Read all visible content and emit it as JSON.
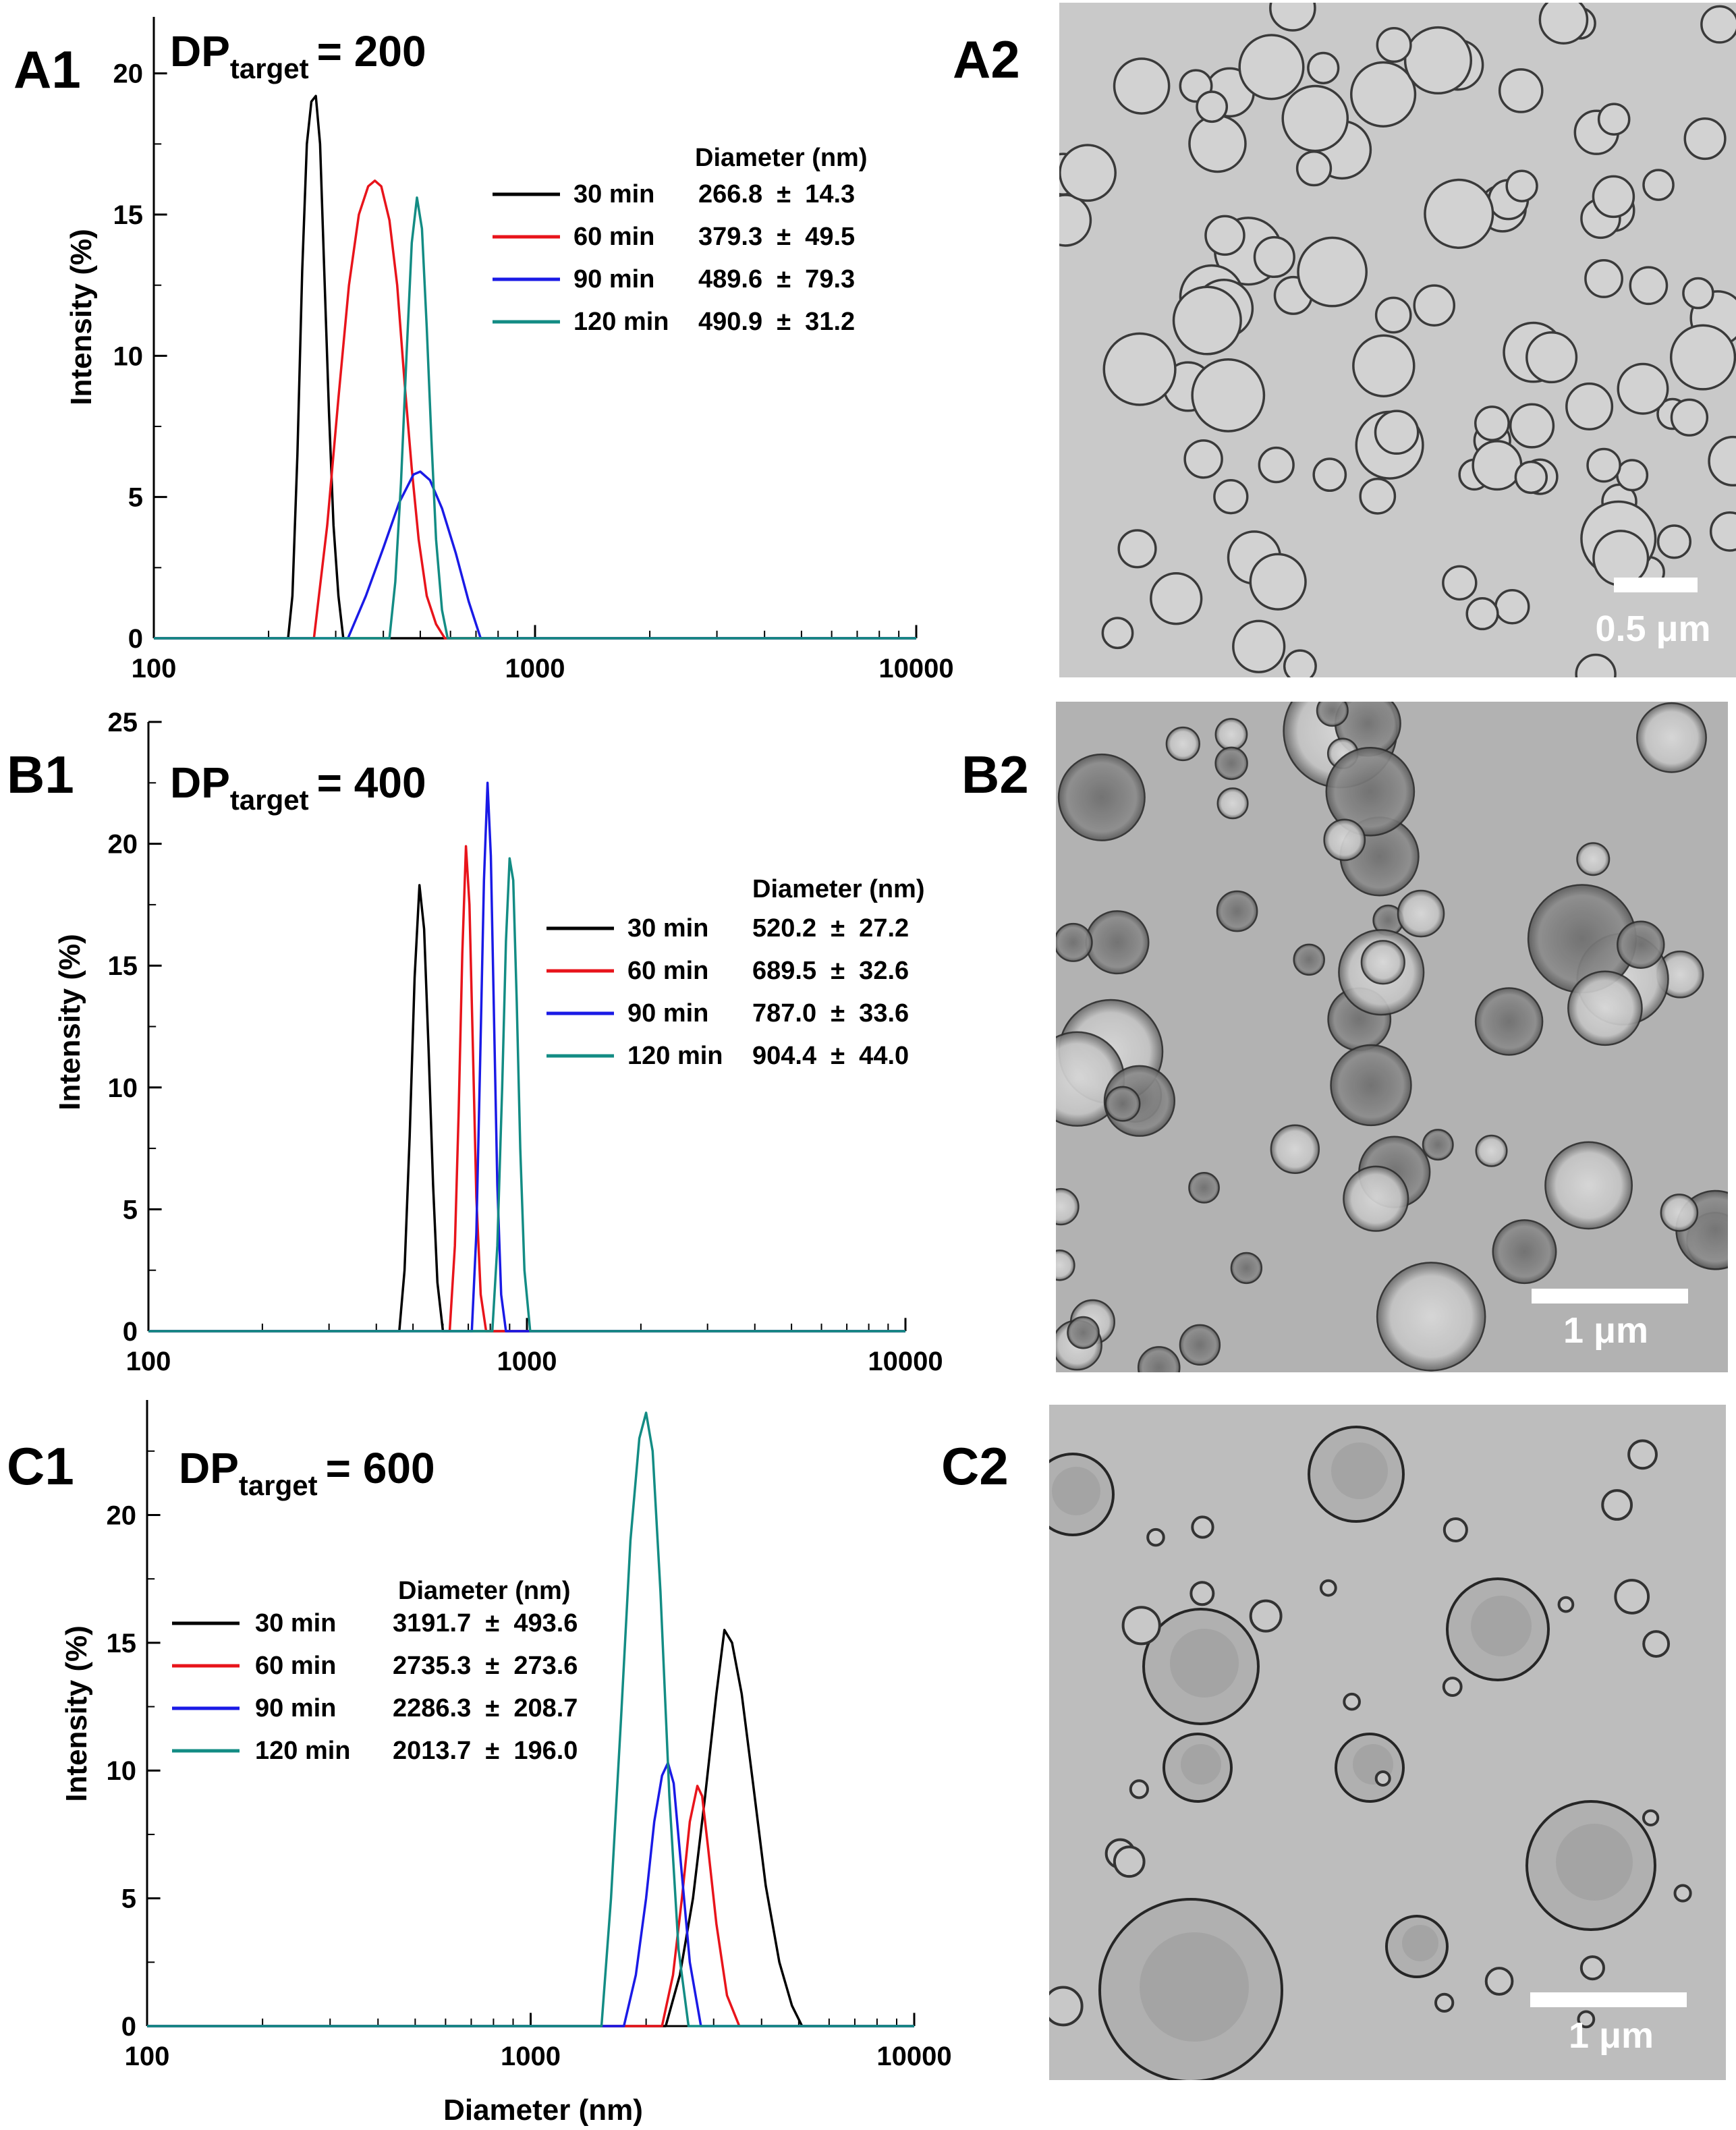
{
  "figure": {
    "panels": [
      {
        "id": "A1",
        "label": "A1"
      },
      {
        "id": "A2",
        "label": "A2"
      },
      {
        "id": "B1",
        "label": "B1"
      },
      {
        "id": "B2",
        "label": "B2"
      },
      {
        "id": "C1",
        "label": "C1"
      },
      {
        "id": "C2",
        "label": "C2"
      }
    ],
    "micrographs": [
      {
        "id": "A2",
        "scale_bar_label": "0.5 μm",
        "style": "small-vesicles"
      },
      {
        "id": "B2",
        "scale_bar_label": "1 μm",
        "style": "medium-vesicles"
      },
      {
        "id": "C2",
        "scale_bar_label": "1 μm",
        "style": "large-vesicles"
      }
    ],
    "colors": {
      "30 min": "#000000",
      "60 min": "#e8141b",
      "90 min": "#1a1ae6",
      "120 min": "#138c84"
    }
  },
  "chart_data": [
    {
      "panel": "A1",
      "type": "line",
      "title_main": "DP",
      "title_sub": "target",
      "title_value": "= 200",
      "xlabel": "",
      "ylabel": "Intensity (%)",
      "xscale": "log",
      "xlim": [
        100,
        10000
      ],
      "ylim": [
        0,
        22
      ],
      "xticks": [
        100,
        1000,
        10000
      ],
      "xtick_labels": [
        "100",
        "1000",
        "10000"
      ],
      "yticks": [
        0,
        5,
        10,
        15,
        20
      ],
      "ytick_labels": [
        "0",
        "5",
        "10",
        "15",
        "20"
      ],
      "legend_header": "Diameter (nm)",
      "legend_placement": "top-right",
      "series": [
        {
          "name": "30 min",
          "label": "30 min",
          "stat": "266.8  ±  14.3",
          "color": "#000000",
          "x": [
            100,
            225,
            231,
            238,
            245,
            252,
            259,
            266,
            273,
            280,
            288,
            296,
            305,
            314,
            10000
          ],
          "y": [
            0,
            0,
            1.5,
            6.5,
            13.0,
            17.5,
            19.0,
            19.2,
            17.5,
            13.0,
            8.0,
            4.0,
            1.5,
            0,
            0
          ]
        },
        {
          "name": "60 min",
          "label": "60 min",
          "stat": "379.3  ±  49.5",
          "color": "#e8141b",
          "x": [
            100,
            263,
            285,
            305,
            325,
            345,
            365,
            380,
            395,
            415,
            435,
            455,
            475,
            495,
            520,
            550,
            580,
            10000
          ],
          "y": [
            0,
            0,
            4.0,
            8.5,
            12.5,
            15.0,
            16.0,
            16.2,
            16.0,
            14.8,
            12.5,
            9.0,
            6.0,
            3.5,
            1.5,
            0.5,
            0,
            0
          ]
        },
        {
          "name": "90 min",
          "label": "90 min",
          "stat": "489.6  ±  79.3",
          "color": "#1a1ae6",
          "x": [
            100,
            323,
            360,
            400,
            440,
            480,
            500,
            530,
            570,
            620,
            670,
            720,
            10000
          ],
          "y": [
            0,
            0,
            1.5,
            3.2,
            4.8,
            5.8,
            5.9,
            5.6,
            4.6,
            3.0,
            1.3,
            0,
            0
          ]
        },
        {
          "name": "120 min",
          "label": "120 min",
          "stat": "490.9  ±  31.2",
          "color": "#138c84",
          "x": [
            100,
            415,
            430,
            445,
            460,
            475,
            490,
            505,
            520,
            535,
            550,
            570,
            590,
            10000
          ],
          "y": [
            0,
            0,
            2.0,
            5.5,
            10.0,
            14.0,
            15.6,
            14.5,
            11.0,
            7.0,
            3.5,
            1.0,
            0,
            0
          ]
        }
      ]
    },
    {
      "panel": "B1",
      "type": "line",
      "title_main": "DP",
      "title_sub": "target",
      "title_value": "= 400",
      "xlabel": "",
      "ylabel": "Intensity (%)",
      "xscale": "log",
      "xlim": [
        100,
        10000
      ],
      "ylim": [
        0,
        25
      ],
      "xticks": [
        100,
        1000,
        10000
      ],
      "xtick_labels": [
        "100",
        "1000",
        "10000"
      ],
      "yticks": [
        0,
        5,
        10,
        15,
        20,
        25
      ],
      "ytick_labels": [
        "0",
        "5",
        "10",
        "15",
        "20",
        "25"
      ],
      "legend_header": "Diameter (nm)",
      "legend_placement": "top-right",
      "series": [
        {
          "name": "30 min",
          "label": "30 min",
          "stat": "520.2  ±  27.2",
          "color": "#000000",
          "x": [
            100,
            460,
            475,
            490,
            505,
            520,
            535,
            550,
            565,
            580,
            600,
            10000
          ],
          "y": [
            0,
            0,
            2.5,
            8.0,
            14.5,
            18.3,
            16.5,
            11.5,
            6.0,
            2.0,
            0,
            0
          ]
        },
        {
          "name": "60 min",
          "label": "60 min",
          "stat": "689.5  ±  32.6",
          "color": "#e8141b",
          "x": [
            100,
            625,
            645,
            660,
            675,
            690,
            705,
            720,
            735,
            755,
            780,
            10000
          ],
          "y": [
            0,
            0,
            3.5,
            9.0,
            15.5,
            19.9,
            17.5,
            11.5,
            5.5,
            1.5,
            0,
            0
          ]
        },
        {
          "name": "90 min",
          "label": "90 min",
          "stat": "787.0  ±  33.6",
          "color": "#1a1ae6",
          "x": [
            100,
            715,
            735,
            752,
            770,
            787,
            803,
            818,
            835,
            855,
            880,
            10000
          ],
          "y": [
            0,
            0,
            4.0,
            11.0,
            18.5,
            22.5,
            19.5,
            13.0,
            6.0,
            1.5,
            0,
            0
          ]
        },
        {
          "name": "120 min",
          "label": "120 min",
          "stat": "904.4  ±  44.0",
          "color": "#138c84",
          "x": [
            100,
            810,
            835,
            860,
            880,
            900,
            920,
            940,
            960,
            985,
            1020,
            10000
          ],
          "y": [
            0,
            0,
            3.5,
            10.0,
            16.0,
            19.4,
            18.5,
            13.5,
            7.5,
            2.5,
            0,
            0
          ]
        }
      ]
    },
    {
      "panel": "C1",
      "type": "line",
      "title_main": "DP",
      "title_sub": "target",
      "title_value": "= 600",
      "xlabel": "Diameter (nm)",
      "ylabel": "Intensity (%)",
      "xscale": "log",
      "xlim": [
        100,
        10000
      ],
      "ylim": [
        0,
        24.5
      ],
      "xticks": [
        100,
        1000,
        10000
      ],
      "xtick_labels": [
        "100",
        "1000",
        "10000"
      ],
      "yticks": [
        0,
        5,
        10,
        15,
        20
      ],
      "ytick_labels": [
        "0",
        "5",
        "10",
        "15",
        "20"
      ],
      "legend_header": "Diameter (nm)",
      "legend_placement": "top-left",
      "series": [
        {
          "name": "30 min",
          "label": "30 min",
          "stat": "3191.7  ±  493.6",
          "color": "#000000",
          "x": [
            100,
            2250,
            2450,
            2650,
            2850,
            3050,
            3200,
            3350,
            3550,
            3800,
            4100,
            4450,
            4800,
            5100,
            10000
          ],
          "y": [
            0,
            0,
            2.0,
            5.0,
            9.0,
            13.0,
            15.5,
            15.0,
            13.0,
            9.5,
            5.5,
            2.5,
            0.8,
            0,
            0
          ]
        },
        {
          "name": "60 min",
          "label": "60 min",
          "stat": "2735.3  ±  273.6",
          "color": "#e8141b",
          "x": [
            100,
            2200,
            2350,
            2480,
            2600,
            2720,
            2800,
            2900,
            3050,
            3250,
            3500,
            10000
          ],
          "y": [
            0,
            0,
            2.0,
            5.0,
            8.0,
            9.4,
            9.0,
            7.0,
            4.0,
            1.2,
            0,
            0
          ]
        },
        {
          "name": "90 min",
          "label": "90 min",
          "stat": "2286.3  ±  208.7",
          "color": "#1a1ae6",
          "x": [
            100,
            1750,
            1880,
            2000,
            2100,
            2200,
            2280,
            2360,
            2460,
            2600,
            2780,
            10000
          ],
          "y": [
            0,
            0,
            2.0,
            5.0,
            8.0,
            9.8,
            10.3,
            9.5,
            6.5,
            2.5,
            0,
            0
          ]
        },
        {
          "name": "120 min",
          "label": "120 min",
          "stat": "2013.7  ±  196.0",
          "color": "#138c84",
          "x": [
            100,
            1530,
            1620,
            1720,
            1820,
            1920,
            2000,
            2080,
            2180,
            2300,
            2430,
            2580,
            10000
          ],
          "y": [
            0,
            0,
            5.0,
            12.0,
            19.0,
            23.0,
            24.0,
            22.5,
            17.0,
            9.0,
            3.0,
            0,
            0
          ]
        }
      ]
    }
  ]
}
